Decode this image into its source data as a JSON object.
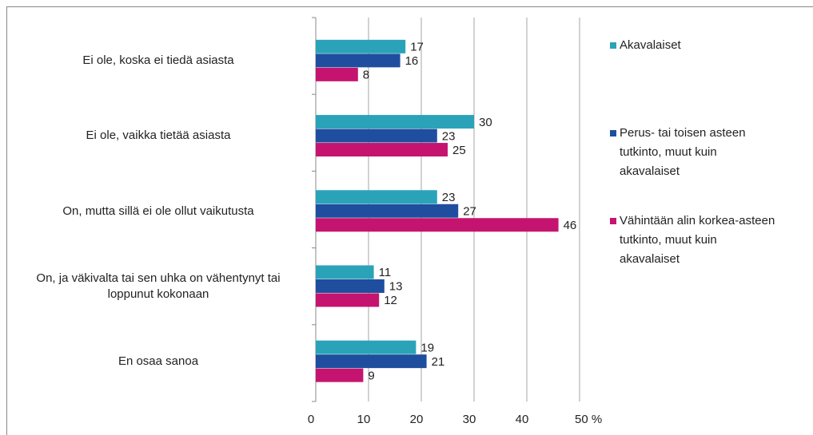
{
  "chart_data": {
    "type": "bar",
    "orientation": "horizontal",
    "categories": [
      "Ei ole, koska ei tiedä asiasta",
      "Ei ole, vaikka tietää asiasta",
      "On, mutta sillä ei ole ollut vaikutusta",
      "On, ja väkivalta tai sen uhka on vähentynyt tai loppunut kokonaan",
      "En osaa sanoa"
    ],
    "series": [
      {
        "name": "Akavalaiset",
        "color": "#2aa3b9",
        "values": [
          17,
          30,
          23,
          11,
          19
        ]
      },
      {
        "name": "Perus- tai toisen asteen tutkinto, muut kuin akavalaiset",
        "color": "#1f4e9f",
        "values": [
          16,
          23,
          27,
          13,
          21
        ]
      },
      {
        "name": "Vähintään alin korkea-asteen tutkinto, muut kuin akavalaiset",
        "color": "#c5146f",
        "values": [
          8,
          25,
          46,
          12,
          9
        ]
      }
    ],
    "xlim": [
      0,
      50
    ],
    "xticks": [
      0,
      10,
      20,
      30,
      40,
      {
        "value": 50,
        "label": "50 %"
      }
    ],
    "grid": true,
    "legend": "right"
  }
}
